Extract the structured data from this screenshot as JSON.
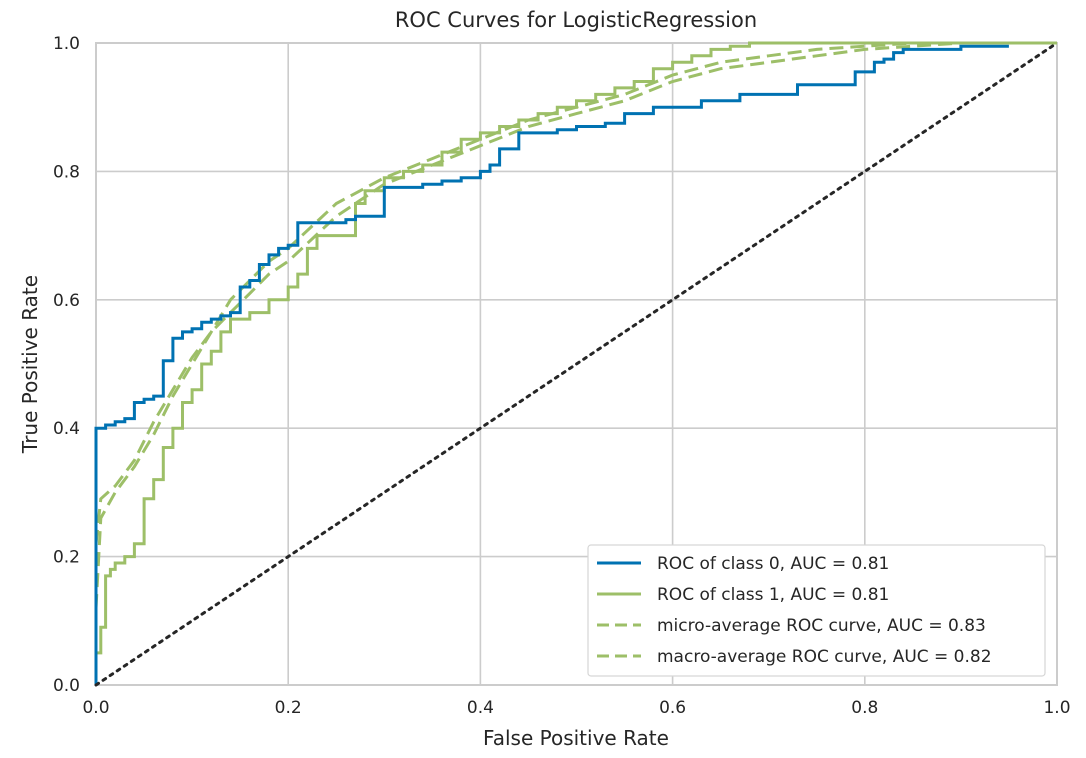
{
  "chart_data": {
    "type": "line",
    "title": "ROC Curves for LogisticRegression",
    "xlabel": "False Positive Rate",
    "ylabel": "True Positive Rate",
    "xlim": [
      0.0,
      1.0
    ],
    "ylim": [
      0.0,
      1.0
    ],
    "grid": true,
    "legend_position": "bottom-right",
    "xticks": [
      {
        "value": 0.0,
        "label": "0.0"
      },
      {
        "value": 0.2,
        "label": "0.2"
      },
      {
        "value": 0.4,
        "label": "0.4"
      },
      {
        "value": 0.6,
        "label": "0.6"
      },
      {
        "value": 0.8,
        "label": "0.8"
      },
      {
        "value": 1.0,
        "label": "1.0"
      }
    ],
    "yticks": [
      {
        "value": 0.0,
        "label": "0.0"
      },
      {
        "value": 0.2,
        "label": "0.2"
      },
      {
        "value": 0.4,
        "label": "0.4"
      },
      {
        "value": 0.6,
        "label": "0.6"
      },
      {
        "value": 0.8,
        "label": "0.8"
      },
      {
        "value": 1.0,
        "label": "1.0"
      }
    ],
    "series": [
      {
        "name": "ROC of class 0, AUC = 0.81",
        "color": "#0072b2",
        "dash": "solid",
        "x": [
          0.0,
          0.0,
          0.01,
          0.01,
          0.02,
          0.02,
          0.03,
          0.03,
          0.04,
          0.04,
          0.05,
          0.05,
          0.06,
          0.06,
          0.07,
          0.07,
          0.08,
          0.08,
          0.09,
          0.09,
          0.1,
          0.1,
          0.11,
          0.11,
          0.12,
          0.12,
          0.13,
          0.13,
          0.14,
          0.14,
          0.15,
          0.15,
          0.16,
          0.16,
          0.17,
          0.17,
          0.18,
          0.18,
          0.19,
          0.19,
          0.2,
          0.2,
          0.21,
          0.21,
          0.26,
          0.26,
          0.27,
          0.27,
          0.3,
          0.3,
          0.34,
          0.34,
          0.36,
          0.36,
          0.38,
          0.38,
          0.4,
          0.4,
          0.41,
          0.41,
          0.42,
          0.42,
          0.44,
          0.44,
          0.48,
          0.48,
          0.5,
          0.5,
          0.53,
          0.53,
          0.55,
          0.55,
          0.58,
          0.58,
          0.63,
          0.63,
          0.67,
          0.67,
          0.73,
          0.73,
          0.79,
          0.79,
          0.81,
          0.81,
          0.82,
          0.82,
          0.83,
          0.83,
          0.84,
          0.84,
          0.9,
          0.9,
          0.95
        ],
        "y": [
          0.0,
          0.4,
          0.4,
          0.405,
          0.405,
          0.41,
          0.41,
          0.415,
          0.415,
          0.44,
          0.44,
          0.445,
          0.445,
          0.45,
          0.45,
          0.505,
          0.505,
          0.54,
          0.54,
          0.55,
          0.55,
          0.555,
          0.555,
          0.565,
          0.565,
          0.57,
          0.57,
          0.575,
          0.575,
          0.58,
          0.58,
          0.62,
          0.62,
          0.63,
          0.63,
          0.655,
          0.655,
          0.67,
          0.67,
          0.68,
          0.68,
          0.685,
          0.685,
          0.72,
          0.72,
          0.725,
          0.725,
          0.73,
          0.73,
          0.775,
          0.775,
          0.78,
          0.78,
          0.785,
          0.785,
          0.79,
          0.79,
          0.8,
          0.8,
          0.81,
          0.81,
          0.835,
          0.835,
          0.86,
          0.86,
          0.865,
          0.865,
          0.87,
          0.87,
          0.875,
          0.875,
          0.89,
          0.89,
          0.9,
          0.9,
          0.91,
          0.91,
          0.92,
          0.92,
          0.935,
          0.935,
          0.955,
          0.955,
          0.97,
          0.97,
          0.975,
          0.975,
          0.985,
          0.985,
          0.99,
          0.99,
          0.995,
          0.995
        ]
      },
      {
        "name": "ROC of class 1, AUC = 0.81",
        "color": "#9dbf68",
        "dash": "solid",
        "x": [
          0.0,
          0.0,
          0.005,
          0.005,
          0.01,
          0.01,
          0.015,
          0.015,
          0.02,
          0.02,
          0.03,
          0.03,
          0.04,
          0.04,
          0.05,
          0.05,
          0.06,
          0.06,
          0.07,
          0.07,
          0.08,
          0.08,
          0.09,
          0.09,
          0.1,
          0.1,
          0.11,
          0.11,
          0.12,
          0.12,
          0.13,
          0.13,
          0.14,
          0.14,
          0.16,
          0.16,
          0.18,
          0.18,
          0.2,
          0.2,
          0.21,
          0.21,
          0.22,
          0.22,
          0.23,
          0.23,
          0.27,
          0.27,
          0.28,
          0.28,
          0.3,
          0.3,
          0.32,
          0.32,
          0.34,
          0.34,
          0.36,
          0.36,
          0.38,
          0.38,
          0.4,
          0.4,
          0.42,
          0.42,
          0.44,
          0.44,
          0.46,
          0.46,
          0.48,
          0.48,
          0.5,
          0.5,
          0.52,
          0.52,
          0.54,
          0.54,
          0.56,
          0.56,
          0.58,
          0.58,
          0.6,
          0.6,
          0.62,
          0.62,
          0.64,
          0.64,
          0.66,
          0.66,
          0.68,
          0.68,
          0.7,
          0.7,
          1.0
        ],
        "y": [
          0.0,
          0.05,
          0.05,
          0.09,
          0.09,
          0.17,
          0.17,
          0.18,
          0.18,
          0.19,
          0.19,
          0.2,
          0.2,
          0.22,
          0.22,
          0.29,
          0.29,
          0.32,
          0.32,
          0.37,
          0.37,
          0.4,
          0.4,
          0.44,
          0.44,
          0.46,
          0.46,
          0.5,
          0.5,
          0.52,
          0.52,
          0.55,
          0.55,
          0.57,
          0.57,
          0.58,
          0.58,
          0.6,
          0.6,
          0.62,
          0.62,
          0.64,
          0.64,
          0.68,
          0.68,
          0.7,
          0.7,
          0.75,
          0.75,
          0.77,
          0.77,
          0.79,
          0.79,
          0.8,
          0.8,
          0.81,
          0.81,
          0.83,
          0.83,
          0.85,
          0.85,
          0.86,
          0.86,
          0.87,
          0.87,
          0.88,
          0.88,
          0.89,
          0.89,
          0.9,
          0.9,
          0.91,
          0.91,
          0.92,
          0.92,
          0.93,
          0.93,
          0.94,
          0.94,
          0.96,
          0.96,
          0.97,
          0.97,
          0.98,
          0.98,
          0.99,
          0.99,
          0.995,
          0.995,
          1.0,
          1.0,
          1.0,
          1.0
        ]
      },
      {
        "name": "micro-average ROC curve, AUC = 0.83",
        "color": "#9dbf68",
        "dash": "dashed",
        "x": [
          0.0,
          0.005,
          0.02,
          0.04,
          0.06,
          0.08,
          0.1,
          0.12,
          0.14,
          0.16,
          0.18,
          0.2,
          0.25,
          0.3,
          0.35,
          0.4,
          0.45,
          0.5,
          0.55,
          0.6,
          0.65,
          0.7,
          0.75,
          0.8,
          0.85,
          0.9,
          1.0
        ],
        "y": [
          0.12,
          0.26,
          0.3,
          0.34,
          0.39,
          0.45,
          0.5,
          0.55,
          0.6,
          0.63,
          0.66,
          0.68,
          0.75,
          0.79,
          0.82,
          0.85,
          0.88,
          0.9,
          0.92,
          0.95,
          0.97,
          0.98,
          0.99,
          0.995,
          1.0,
          1.0,
          1.0
        ]
      },
      {
        "name": "macro-average ROC curve, AUC = 0.82",
        "color": "#9dbf68",
        "dash": "dashed",
        "x": [
          0.0,
          0.005,
          0.02,
          0.04,
          0.06,
          0.08,
          0.1,
          0.12,
          0.14,
          0.16,
          0.18,
          0.2,
          0.25,
          0.3,
          0.35,
          0.4,
          0.45,
          0.5,
          0.55,
          0.6,
          0.65,
          0.7,
          0.75,
          0.8,
          0.85,
          0.9,
          1.0
        ],
        "y": [
          0.22,
          0.29,
          0.31,
          0.35,
          0.41,
          0.46,
          0.51,
          0.55,
          0.58,
          0.61,
          0.64,
          0.66,
          0.73,
          0.78,
          0.81,
          0.84,
          0.87,
          0.89,
          0.91,
          0.94,
          0.96,
          0.97,
          0.98,
          0.99,
          0.995,
          1.0,
          1.0
        ]
      },
      {
        "name": "chance",
        "color": "#262626",
        "dash": "dotted",
        "show_in_legend": false,
        "x": [
          0.0,
          1.0
        ],
        "y": [
          0.0,
          1.0
        ]
      }
    ]
  }
}
